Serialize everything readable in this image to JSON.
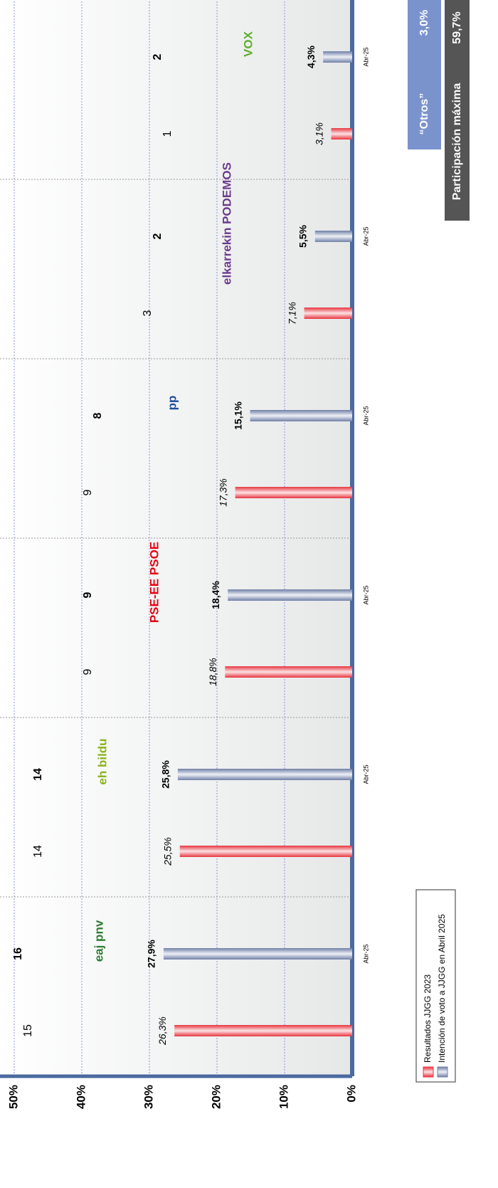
{
  "chart_data": {
    "type": "bar",
    "categories": [
      "eaj pnv",
      "eh bildu",
      "PSE-EE PSOE",
      "pp",
      "elkarrekin PODEMOS",
      "VOX"
    ],
    "logo_colors": [
      "#2e7d32",
      "#8bb31d",
      "#e30613",
      "#1d4f9c",
      "#6c3a8e",
      "#5fb030"
    ],
    "series": [
      {
        "name": "Resultados JJGG 2023",
        "color": "#e8343f",
        "values": [
          26.3,
          25.5,
          18.8,
          17.3,
          7.1,
          3.1
        ],
        "value_labels": [
          "26,3%",
          "25,5%",
          "18,8%",
          "17,3%",
          "7,1%",
          "3,1%"
        ],
        "seats": [
          15,
          14,
          9,
          9,
          3,
          1
        ]
      },
      {
        "name": "Intención de voto a JJGG en Abril 2025",
        "color": "#6f7fa6",
        "values": [
          27.9,
          25.8,
          18.4,
          15.1,
          5.5,
          4.3
        ],
        "value_labels": [
          "27,9%",
          "25,8%",
          "18,4%",
          "15,1%",
          "5,5%",
          "4,3%"
        ],
        "seats": [
          16,
          14,
          9,
          8,
          2,
          2
        ],
        "period_label": "Abr-25"
      }
    ],
    "ylim": [
      0,
      50
    ],
    "yticks": [
      {
        "value": 0,
        "label": "0%"
      },
      {
        "value": 10,
        "label": "10%"
      },
      {
        "value": 20,
        "label": "20%"
      },
      {
        "value": 30,
        "label": "30%"
      },
      {
        "value": 40,
        "label": "40%"
      },
      {
        "value": 50,
        "label": "50%"
      }
    ],
    "grid": true,
    "others": {
      "label": "“Otros”",
      "value": 3.0,
      "value_label": "3,0%"
    },
    "turnout": {
      "label": "Participación máxima",
      "value": 59.7,
      "value_label": "59,7%"
    }
  }
}
